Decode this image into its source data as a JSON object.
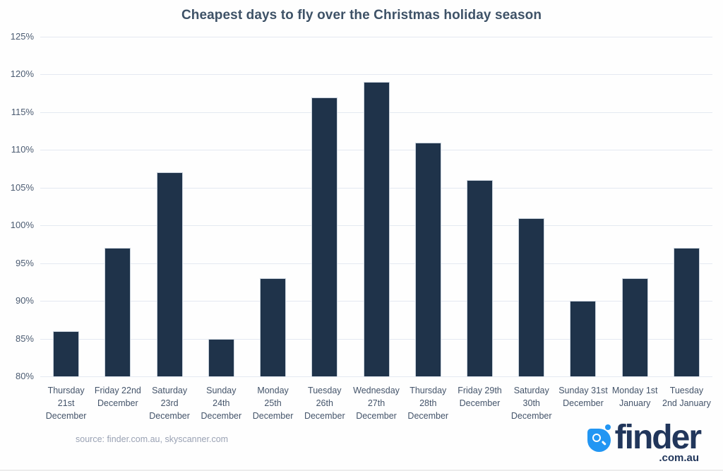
{
  "header": {
    "title": "Cheapest days to fly over the Christmas holiday season",
    "title_color": "#3e5267"
  },
  "footer": {
    "source_text": "source: finder.com.au, skyscanner.com",
    "logo": {
      "brand": "finder",
      "suffix": ".com.au",
      "icon": "magnifier-icon",
      "blue": "#2296f3",
      "navy": "#21365b"
    }
  },
  "chart_data": {
    "type": "bar",
    "title": "Cheapest days to fly over the Christmas holiday season",
    "categories": [
      [
        "Thursday",
        "21st",
        "December"
      ],
      [
        "Friday 22nd",
        "December"
      ],
      [
        "Saturday",
        "23rd",
        "December"
      ],
      [
        "Sunday",
        "24th",
        "December"
      ],
      [
        "Monday",
        "25th",
        "December"
      ],
      [
        "Tuesday",
        "26th",
        "December"
      ],
      [
        "Wednesday",
        "27th",
        "December"
      ],
      [
        "Thursday",
        "28th",
        "December"
      ],
      [
        "Friday 29th",
        "December"
      ],
      [
        "Saturday",
        "30th",
        "December"
      ],
      [
        "Sunday 31st",
        "December"
      ],
      [
        "Monday 1st",
        "January"
      ],
      [
        "Tuesday",
        "2nd January"
      ]
    ],
    "values": [
      86,
      97,
      107,
      85,
      93,
      117,
      119,
      111,
      106,
      101,
      90,
      93,
      97
    ],
    "unit": "%",
    "xlabel": "",
    "ylabel": "",
    "ylim": [
      80,
      125
    ],
    "ytick_step": 5,
    "yticks": [
      "125%",
      "120%",
      "115%",
      "110%",
      "105%",
      "100%",
      "95%",
      "90%",
      "85%",
      "80%"
    ],
    "grid": true,
    "legend": "none",
    "bar_color": "#1f334a",
    "bar_border_color": "#c9d2dc",
    "gridline_color": "#e4e9f1"
  }
}
